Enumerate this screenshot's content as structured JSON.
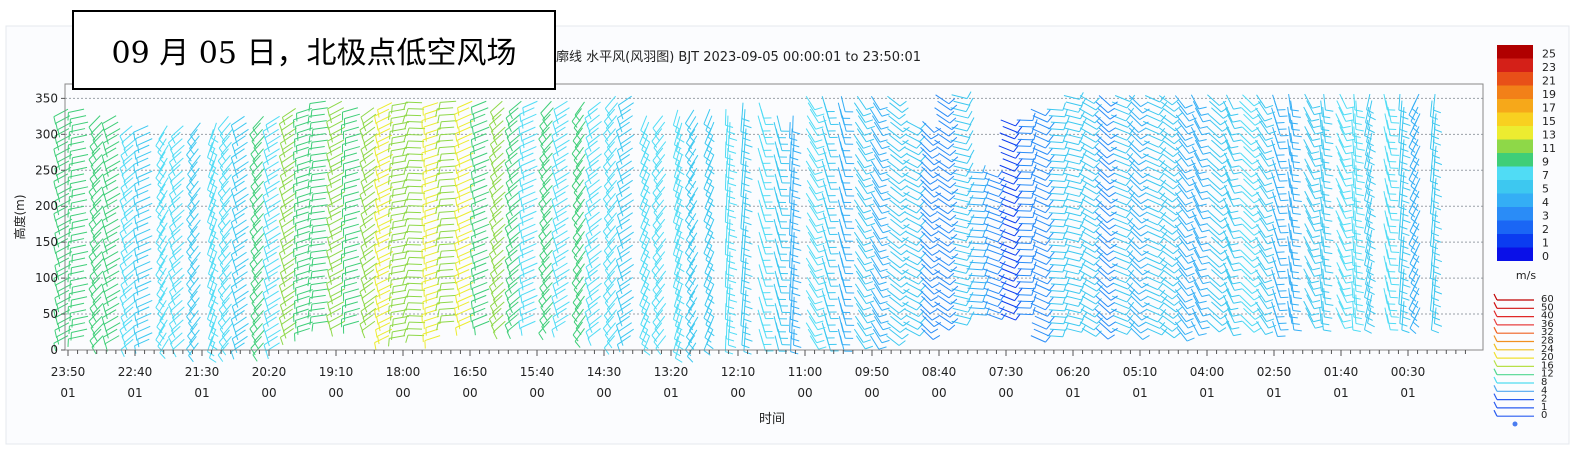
{
  "chart_data": {
    "type": "wind-barb",
    "title": "09 月 05 日，北极点低空风场",
    "subtitle": "廓线 水平风(风羽图) BJT 2023-09-05 00:00:01 to 23:50:01",
    "xlabel": "时间",
    "ylabel": "高度(m)",
    "ylim": [
      0,
      370
    ],
    "yticks": [
      0,
      50,
      100,
      150,
      200,
      250,
      300,
      350
    ],
    "grid": "horizontal-dashed",
    "x_ticks": [
      {
        "time": "23:50",
        "day": "01"
      },
      {
        "time": "22:40",
        "day": "01"
      },
      {
        "time": "21:30",
        "day": "01"
      },
      {
        "time": "20:20",
        "day": "00"
      },
      {
        "time": "19:10",
        "day": "00"
      },
      {
        "time": "18:00",
        "day": "00"
      },
      {
        "time": "16:50",
        "day": "00"
      },
      {
        "time": "15:40",
        "day": "00"
      },
      {
        "time": "14:30",
        "day": "00"
      },
      {
        "time": "13:20",
        "day": "01"
      },
      {
        "time": "12:10",
        "day": "00"
      },
      {
        "time": "11:00",
        "day": "00"
      },
      {
        "time": "09:50",
        "day": "00"
      },
      {
        "time": "08:40",
        "day": "00"
      },
      {
        "time": "07:30",
        "day": "00"
      },
      {
        "time": "06:20",
        "day": "01"
      },
      {
        "time": "05:10",
        "day": "01"
      },
      {
        "time": "04:00",
        "day": "01"
      },
      {
        "time": "02:50",
        "day": "01"
      },
      {
        "time": "01:40",
        "day": "01"
      },
      {
        "time": "00:30",
        "day": "01"
      }
    ],
    "color_legend": {
      "unit": "m/s",
      "levels": [
        "0",
        "1",
        "2",
        "3",
        "4",
        "5",
        "7",
        "9",
        "11",
        "13",
        "15",
        "17",
        "19",
        "21",
        "23",
        "25"
      ],
      "colors": [
        "#0a10e8",
        "#0b3cf0",
        "#1a66f5",
        "#2a8cf7",
        "#34aef5",
        "#3dc8f0",
        "#50dcf5",
        "#3fce78",
        "#8ed848",
        "#ecec30",
        "#f8d020",
        "#f6a81a",
        "#f28018",
        "#e85018",
        "#d42018",
        "#b00000"
      ]
    },
    "barb_legend": {
      "levels": [
        "0",
        "1",
        "2",
        "4",
        "8",
        "12",
        "16",
        "20",
        "24",
        "28",
        "32",
        "36",
        "40",
        "50",
        "60"
      ],
      "colors": [
        "#2a5cf0",
        "#2a5cf0",
        "#2a5cf0",
        "#50a8f0",
        "#50dcf0",
        "#50d890",
        "#b8e048",
        "#f0e030",
        "#f0c020",
        "#f09020",
        "#f06020",
        "#e84040",
        "#e02828",
        "#d01010",
        "#c00000"
      ]
    },
    "wind_field": {
      "note": "time columns listed in display order (left to right); speed in m/s, direction in degrees",
      "columns": [
        {
          "t": "23:50",
          "speed": 10,
          "dir": 200,
          "top": 340,
          "bottom": 20
        },
        {
          "t": "23:20",
          "speed": 9,
          "dir": 210,
          "top": 330,
          "bottom": 20
        },
        {
          "t": "22:50",
          "speed": 8,
          "dir": 220,
          "top": 320,
          "bottom": 15
        },
        {
          "t": "22:20",
          "speed": 8,
          "dir": 230,
          "top": 320,
          "bottom": 15
        },
        {
          "t": "21:50",
          "speed": 6,
          "dir": 240,
          "top": 320,
          "bottom": 10
        },
        {
          "t": "21:20",
          "speed": 8,
          "dir": 230,
          "top": 330,
          "bottom": 10
        },
        {
          "t": "20:50",
          "speed": 9,
          "dir": 220,
          "top": 330,
          "bottom": 10
        },
        {
          "t": "20:20",
          "speed": 11,
          "dir": 210,
          "top": 340,
          "bottom": 30
        },
        {
          "t": "19:50",
          "speed": 12,
          "dir": 200,
          "top": 350,
          "bottom": 40
        },
        {
          "t": "19:20",
          "speed": 11,
          "dir": 200,
          "top": 340,
          "bottom": 40
        },
        {
          "t": "18:40",
          "speed": 12,
          "dir": 190,
          "top": 350,
          "bottom": 20
        },
        {
          "t": "18:00",
          "speed": 14,
          "dir": 190,
          "top": 350,
          "bottom": 20
        },
        {
          "t": "17:20",
          "speed": 13,
          "dir": 200,
          "top": 350,
          "bottom": 40
        },
        {
          "t": "16:50",
          "speed": 10,
          "dir": 210,
          "top": 350,
          "bottom": 40
        },
        {
          "t": "16:10",
          "speed": 9,
          "dir": 220,
          "top": 350,
          "bottom": 40
        },
        {
          "t": "15:40",
          "speed": 9,
          "dir": 220,
          "top": 350,
          "bottom": 40
        },
        {
          "t": "15:00",
          "speed": 9,
          "dir": 230,
          "top": 350,
          "bottom": 30
        },
        {
          "t": "14:30",
          "speed": 8,
          "dir": 230,
          "top": 360,
          "bottom": 20
        },
        {
          "t": "13:50",
          "speed": 8,
          "dir": 240,
          "top": 330,
          "bottom": 20
        },
        {
          "t": "13:20",
          "speed": 7,
          "dir": 250,
          "top": 340,
          "bottom": 10
        },
        {
          "t": "12:40",
          "speed": 7,
          "dir": 260,
          "top": 340,
          "bottom": 20
        },
        {
          "t": "12:10",
          "speed": 6,
          "dir": 270,
          "top": 350,
          "bottom": 20
        },
        {
          "t": "11:30",
          "speed": 6,
          "dir": 280,
          "top": 330,
          "bottom": 20
        },
        {
          "t": "11:00",
          "speed": 6,
          "dir": 290,
          "top": 360,
          "bottom": 20
        },
        {
          "t": "10:20",
          "speed": 6,
          "dir": 300,
          "top": 360,
          "bottom": 20
        },
        {
          "t": "09:50",
          "speed": 5,
          "dir": 310,
          "top": 360,
          "bottom": 20
        },
        {
          "t": "09:10",
          "speed": 4,
          "dir": 320,
          "top": 320,
          "bottom": 30
        },
        {
          "t": "08:40",
          "speed": 4,
          "dir": 330,
          "top": 360,
          "bottom": 40
        },
        {
          "t": "08:10",
          "speed": 3,
          "dir": 340,
          "top": 250,
          "bottom": 50
        },
        {
          "t": "07:30",
          "speed": 3,
          "dir": 350,
          "top": 320,
          "bottom": 50
        },
        {
          "t": "07:00",
          "speed": 4,
          "dir": 340,
          "top": 340,
          "bottom": 20
        },
        {
          "t": "06:20",
          "speed": 5,
          "dir": 330,
          "top": 360,
          "bottom": 30
        },
        {
          "t": "05:50",
          "speed": 5,
          "dir": 330,
          "top": 360,
          "bottom": 30
        },
        {
          "t": "05:10",
          "speed": 5,
          "dir": 320,
          "top": 360,
          "bottom": 30
        },
        {
          "t": "04:40",
          "speed": 6,
          "dir": 320,
          "top": 360,
          "bottom": 30
        },
        {
          "t": "04:00",
          "speed": 6,
          "dir": 310,
          "top": 360,
          "bottom": 40
        },
        {
          "t": "03:20",
          "speed": 6,
          "dir": 300,
          "top": 360,
          "bottom": 40
        },
        {
          "t": "02:50",
          "speed": 6,
          "dir": 300,
          "top": 360,
          "bottom": 40
        },
        {
          "t": "02:10",
          "speed": 6,
          "dir": 290,
          "top": 360,
          "bottom": 50
        },
        {
          "t": "01:40",
          "speed": 6,
          "dir": 280,
          "top": 360,
          "bottom": 50
        },
        {
          "t": "01:00",
          "speed": 7,
          "dir": 270,
          "top": 360,
          "bottom": 50
        },
        {
          "t": "00:30",
          "speed": 7,
          "dir": 270,
          "top": 360,
          "bottom": 50
        },
        {
          "t": "00:00",
          "speed": 6,
          "dir": 260,
          "top": 360,
          "bottom": 50
        }
      ]
    }
  }
}
